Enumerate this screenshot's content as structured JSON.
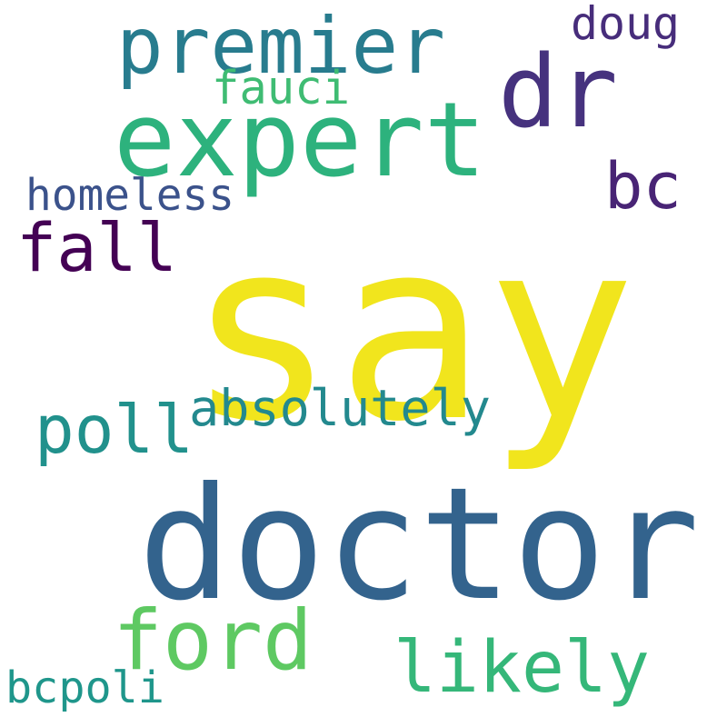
{
  "words": [
    {
      "text": "say",
      "color": "#f1e51d"
    },
    {
      "text": "doctor",
      "color": "#33638d"
    },
    {
      "text": "expert",
      "color": "#2db27d"
    },
    {
      "text": "dr",
      "color": "#46327e"
    },
    {
      "text": "premier",
      "color": "#287c8e"
    },
    {
      "text": "ford",
      "color": "#5ec962"
    },
    {
      "text": "fall",
      "color": "#440154"
    },
    {
      "text": "likely",
      "color": "#35b779"
    },
    {
      "text": "poll",
      "color": "#21918c"
    },
    {
      "text": "absolutely",
      "color": "#23898e"
    },
    {
      "text": "bc",
      "color": "#482475"
    },
    {
      "text": "homeless",
      "color": "#3b528b"
    },
    {
      "text": "fauci",
      "color": "#3fbc73"
    },
    {
      "text": "doug",
      "color": "#472d7b"
    },
    {
      "text": "bcpoli",
      "color": "#1f968b"
    }
  ]
}
